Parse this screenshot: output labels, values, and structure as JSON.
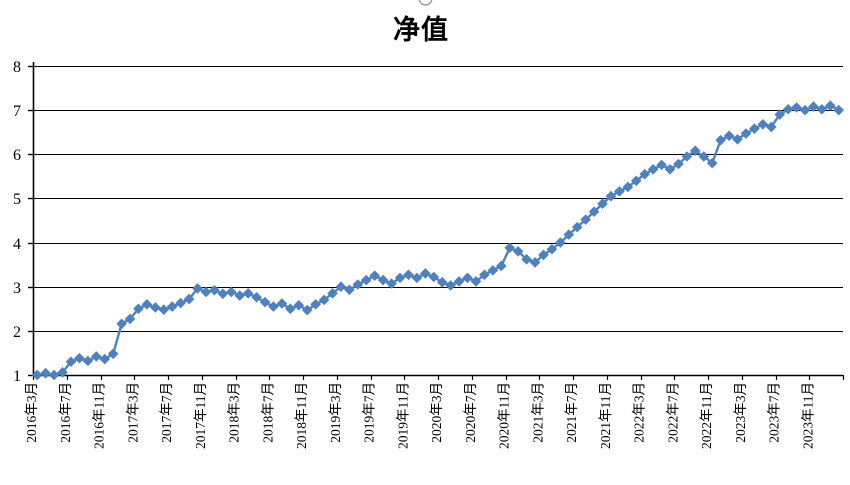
{
  "title": "净值",
  "decoration": {
    "cropped_glyph": "partial-circle-top-edge"
  },
  "chart_data": {
    "type": "line",
    "title": "净值",
    "xlabel": "",
    "ylabel": "",
    "ylim": [
      1,
      8
    ],
    "y_ticks": [
      1,
      2,
      3,
      4,
      5,
      6,
      7,
      8
    ],
    "grid": "horizontal",
    "legend": "none",
    "marker": "diamond",
    "line_color": "#4F81BD",
    "axis_color": "#000000",
    "background": "#FFFFFF",
    "x_label_every": 4,
    "x_labels": [
      "2016年3月",
      "2016年7月",
      "2016年11月",
      "2017年3月",
      "2017年7月",
      "2017年11月",
      "2018年3月",
      "2018年7月",
      "2018年11月",
      "2019年3月",
      "2019年7月",
      "2019年11月",
      "2020年3月",
      "2020年7月",
      "2020年11月",
      "2021年3月",
      "2021年7月",
      "2021年11月",
      "2022年3月",
      "2022年7月",
      "2022年11月",
      "2023年3月",
      "2023年7月",
      "2023年11月"
    ],
    "series": [
      {
        "name": "净值",
        "values": [
          1.0,
          1.04,
          1.0,
          1.06,
          1.3,
          1.38,
          1.32,
          1.42,
          1.36,
          1.48,
          2.16,
          2.27,
          2.5,
          2.6,
          2.53,
          2.48,
          2.55,
          2.63,
          2.72,
          2.96,
          2.88,
          2.92,
          2.84,
          2.88,
          2.8,
          2.85,
          2.76,
          2.65,
          2.55,
          2.62,
          2.5,
          2.58,
          2.47,
          2.6,
          2.7,
          2.85,
          3.0,
          2.93,
          3.05,
          3.15,
          3.25,
          3.15,
          3.07,
          3.2,
          3.27,
          3.2,
          3.3,
          3.22,
          3.1,
          3.03,
          3.12,
          3.2,
          3.12,
          3.27,
          3.37,
          3.47,
          3.88,
          3.8,
          3.62,
          3.55,
          3.72,
          3.85,
          4.0,
          4.18,
          4.35,
          4.52,
          4.7,
          4.88,
          5.05,
          5.16,
          5.26,
          5.4,
          5.55,
          5.66,
          5.76,
          5.66,
          5.78,
          5.95,
          6.08,
          5.95,
          5.8,
          6.32,
          6.42,
          6.34,
          6.47,
          6.58,
          6.68,
          6.62,
          6.9,
          7.02,
          7.06,
          7.0,
          7.08,
          7.02,
          7.1,
          7.0
        ]
      }
    ]
  }
}
